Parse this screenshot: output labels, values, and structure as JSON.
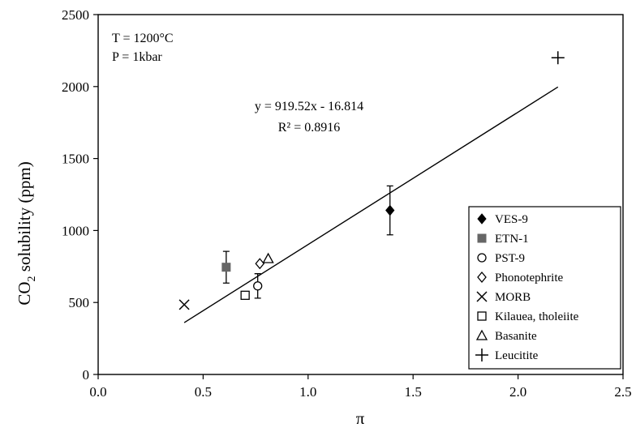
{
  "chart_data": {
    "type": "scatter",
    "xlabel": "π",
    "ylabel_main": "CO",
    "ylabel_sub": "2",
    "ylabel_rest": " solubility (ppm)",
    "xlim": [
      0,
      2.5
    ],
    "ylim": [
      0,
      2500
    ],
    "xticks": [
      0,
      0.5,
      1.0,
      1.5,
      2.0,
      2.5
    ],
    "xtick_labels": [
      "0.0",
      "0.5",
      "1.0",
      "1.5",
      "2.0",
      "2.5"
    ],
    "yticks": [
      0,
      500,
      1000,
      1500,
      2000,
      2500
    ],
    "ytick_labels": [
      "0",
      "500",
      "1000",
      "1500",
      "2000",
      "2500"
    ],
    "conditions": [
      "T = 1200°C",
      "P = 1kbar"
    ],
    "fit": {
      "equation": "y = 919.52x - 16.814",
      "r2": "R² = 0.8916",
      "slope": 919.52,
      "intercept": -16.814,
      "x_range": [
        0.41,
        2.19
      ]
    },
    "series": [
      {
        "name": "VES-9",
        "marker": "filled-diamond",
        "points": [
          {
            "x": 1.39,
            "y": 1140,
            "err": 170
          }
        ]
      },
      {
        "name": "ETN-1",
        "marker": "filled-square",
        "color": "#666666",
        "points": [
          {
            "x": 0.61,
            "y": 745,
            "err": 110
          }
        ]
      },
      {
        "name": "PST-9",
        "marker": "open-circle",
        "points": [
          {
            "x": 0.76,
            "y": 615,
            "err": 85
          }
        ]
      },
      {
        "name": "Phonotephrite",
        "marker": "open-diamond",
        "points": [
          {
            "x": 0.77,
            "y": 770
          }
        ]
      },
      {
        "name": "MORB",
        "marker": "x",
        "points": [
          {
            "x": 0.41,
            "y": 485
          }
        ]
      },
      {
        "name": "Kilauea, tholeiite",
        "marker": "open-square",
        "points": [
          {
            "x": 0.7,
            "y": 550
          }
        ]
      },
      {
        "name": "Basanite",
        "marker": "open-triangle",
        "points": [
          {
            "x": 0.81,
            "y": 805
          }
        ]
      },
      {
        "name": "Leucitite",
        "marker": "plus",
        "points": [
          {
            "x": 2.19,
            "y": 2200
          }
        ]
      }
    ],
    "legend_position": "bottom-right",
    "grid": false
  }
}
